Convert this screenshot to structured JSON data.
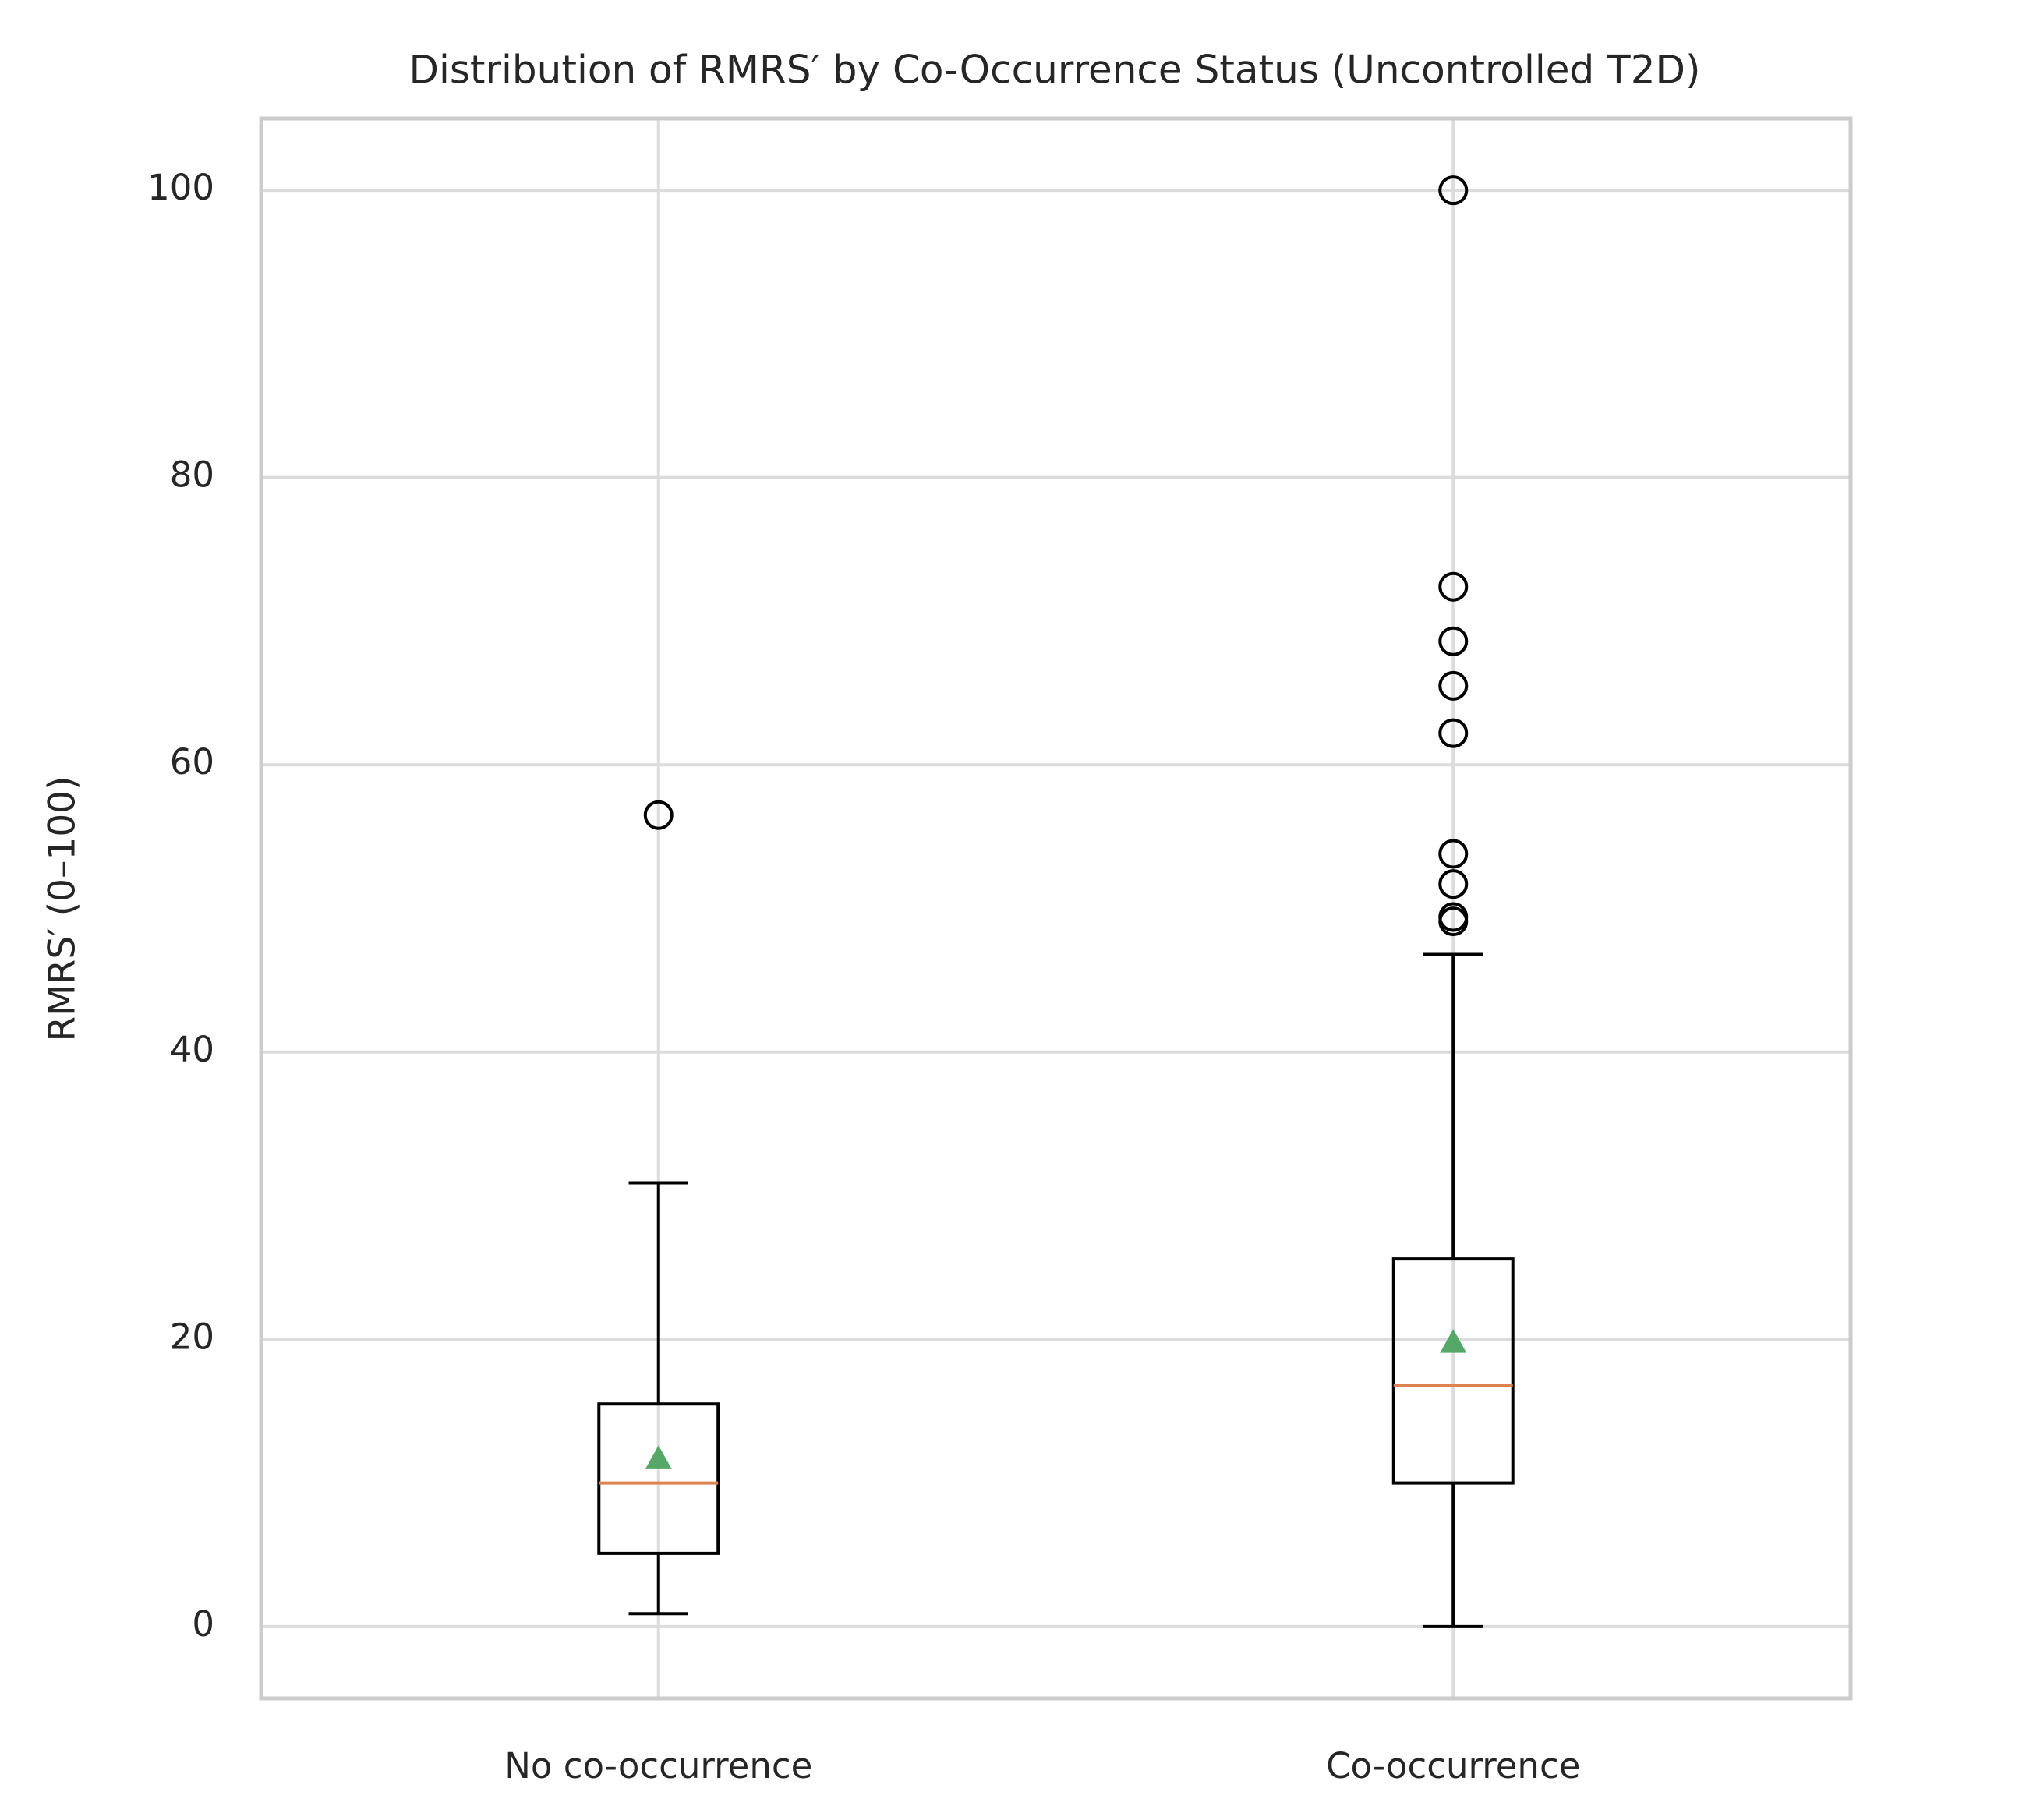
{
  "chart_data": {
    "type": "box",
    "title": "Distribution of RMRS′ by Co-Occurrence Status (Uncontrolled T2D)",
    "y_label": "RMRS′ (0–100)",
    "categories": [
      "No co-occurrence",
      "Co-occurrence"
    ],
    "boxes": [
      {
        "whislo": 0.9,
        "q1": 5.1,
        "med": 10.0,
        "q3": 15.5,
        "whishi": 30.9,
        "mean": 11.7,
        "fliers": [
          56.5
        ]
      },
      {
        "whislo": 0,
        "q1": 10.0,
        "med": 16.8,
        "q3": 25.6,
        "whishi": 46.8,
        "mean": 19.8,
        "fliers": [
          100,
          72.4,
          68.6,
          65.5,
          62.2,
          53.8,
          51.7,
          49.4,
          49.1
        ]
      }
    ],
    "box_color": "#000000",
    "median_color": "#dd8452",
    "mean_color": "#55a868",
    "ylim": [
      -5,
      105
    ],
    "yticks": [
      0,
      20,
      40,
      60,
      80,
      100
    ],
    "grid": true
  }
}
